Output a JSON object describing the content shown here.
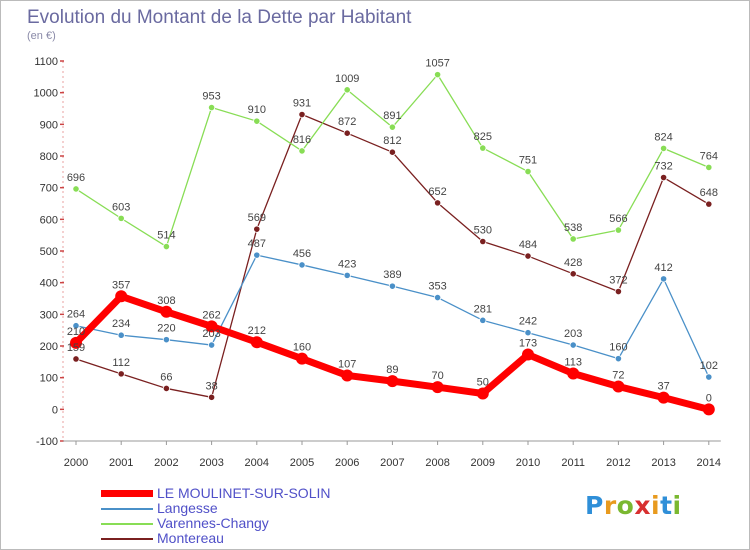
{
  "chart_data": {
    "type": "line",
    "title": "Evolution du Montant de la Dette par Habitant",
    "subtitle": "(en €)",
    "x": [
      "2000",
      "2001",
      "2002",
      "2003",
      "2004",
      "2005",
      "2006",
      "2007",
      "2008",
      "2009",
      "2010",
      "2011",
      "2012",
      "2013",
      "2014"
    ],
    "ylim": [
      -100,
      1100
    ],
    "yticks": [
      -100,
      0,
      100,
      200,
      300,
      400,
      500,
      600,
      700,
      800,
      900,
      1000,
      1100
    ],
    "grid": false,
    "legend_position": "bottom-left",
    "series": [
      {
        "name": "LE MOULINET-SUR-SOLIN",
        "color": "#ff0000",
        "values": [
          210,
          357,
          308,
          262,
          212,
          160,
          107,
          89,
          70,
          50,
          173,
          113,
          72,
          37,
          0
        ],
        "labels": [
          "210",
          "357",
          "308",
          "262",
          "212",
          "160",
          "107",
          "89",
          "70",
          "50",
          "173",
          "113",
          "72",
          "37",
          "0"
        ]
      },
      {
        "name": "Langesse",
        "color": "#4a90c8",
        "values": [
          264,
          234,
          220,
          203,
          487,
          456,
          423,
          389,
          353,
          281,
          242,
          203,
          160,
          412,
          102
        ],
        "labels": [
          "264",
          "234",
          "220",
          "203",
          "487",
          "456",
          "423",
          "389",
          "353",
          "281",
          "242",
          "203",
          "160",
          "412",
          "102"
        ]
      },
      {
        "name": "Varennes-Changy",
        "color": "#88dd55",
        "values": [
          696,
          603,
          514,
          953,
          910,
          816,
          1009,
          891,
          1057,
          825,
          751,
          538,
          566,
          824,
          764
        ],
        "labels": [
          "696",
          "603",
          "514",
          "953",
          "910",
          "816",
          "1009",
          "891",
          "1057",
          "825",
          "751",
          "538",
          "566",
          "824",
          "764"
        ]
      },
      {
        "name": "Montereau",
        "color": "#7a2020",
        "values": [
          159,
          112,
          66,
          38,
          569,
          931,
          872,
          812,
          652,
          530,
          484,
          428,
          372,
          732,
          648
        ],
        "labels": [
          "159",
          "112",
          "66",
          "38",
          "569",
          "931",
          "872",
          "812",
          "652",
          "530",
          "484",
          "428",
          "372",
          "732",
          "648"
        ]
      }
    ]
  },
  "logo": {
    "letters": [
      "P",
      "r",
      "o",
      "x",
      "i",
      "t",
      "i"
    ],
    "colors": [
      "#2f8fd8",
      "#e89a1e",
      "#7ab830",
      "#d83030",
      "#e89a1e",
      "#2f8fd8",
      "#7ab830"
    ]
  }
}
